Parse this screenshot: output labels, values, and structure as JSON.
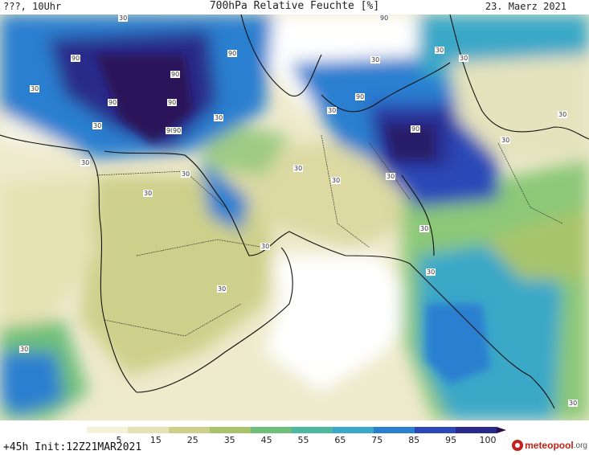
{
  "header": {
    "left": "???, 10Uhr",
    "title": "700hPa Relative Feuchte [%]",
    "date": "23. Maerz 2021"
  },
  "map": {
    "contour_labels": [
      "90",
      "90",
      "90",
      "90",
      "90",
      "90",
      "90",
      "90",
      "90",
      "90",
      "30",
      "30",
      "30",
      "30",
      "30",
      "30",
      "30",
      "30",
      "30",
      "30",
      "30",
      "30",
      "30",
      "30",
      "30",
      "30",
      "30",
      "30",
      "30",
      "30",
      "30",
      "30"
    ]
  },
  "colorbar": {
    "ticks": [
      "5",
      "15",
      "25",
      "35",
      "45",
      "55",
      "65",
      "75",
      "85",
      "95",
      "100"
    ],
    "colors": [
      "#ffffff",
      "#f5f2da",
      "#e6e2b4",
      "#cdd08a",
      "#a8c46a",
      "#6fbf7a",
      "#4db8a0",
      "#3aa8c8",
      "#2a7fd0",
      "#2b48b8",
      "#2a2a8a",
      "#2a0b4e"
    ]
  },
  "footer": {
    "init": "+45h Init:12Z21MAR2021",
    "logo_main": "meteopool",
    "logo_tld": ".org"
  }
}
